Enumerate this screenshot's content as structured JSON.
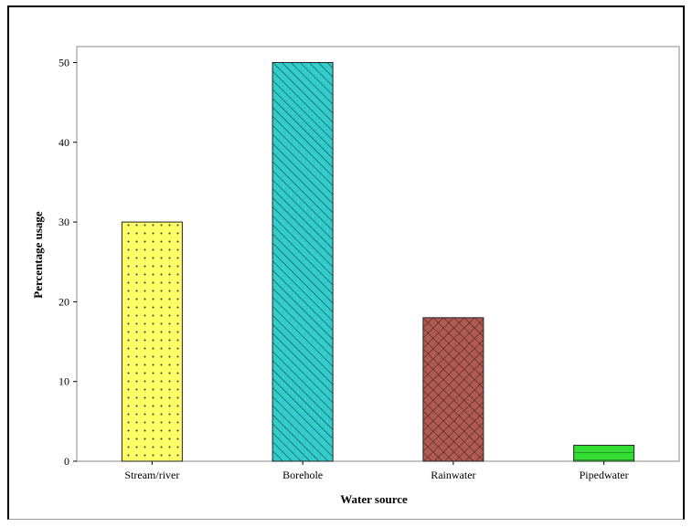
{
  "chart_data": {
    "type": "bar",
    "categories": [
      "Stream/river",
      "Borehole",
      "Rainwater",
      "Pipedwater"
    ],
    "values": [
      30,
      50,
      18,
      2
    ],
    "xlabel": "Water source",
    "ylabel": "Percentage usage",
    "ylim": [
      0,
      52
    ],
    "yticks": [
      0,
      10,
      20,
      30,
      40,
      50
    ],
    "grid": false,
    "bar_fills": [
      {
        "color": "#ffff66",
        "pattern": "dots"
      },
      {
        "color": "#33cccc",
        "pattern": "diagonal"
      },
      {
        "color": "#b05a52",
        "pattern": "crosshatch"
      },
      {
        "color": "#33dd33",
        "pattern": "horizontal"
      }
    ]
  }
}
